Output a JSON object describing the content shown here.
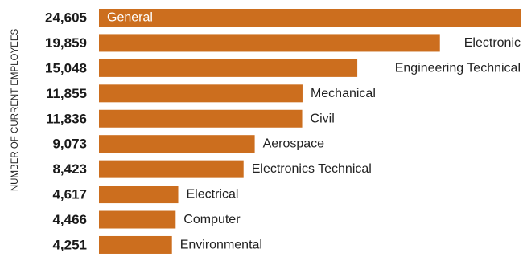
{
  "chart_data": {
    "type": "bar",
    "orientation": "horizontal",
    "title": "",
    "xlabel": "",
    "ylabel": "NUMBER OF CURRENT EMPLOYEES",
    "categories": [
      "General",
      "Electronic",
      "Engineering Technical",
      "Mechanical",
      "Civil",
      "Aerospace",
      "Electronics Technical",
      "Electrical",
      "Computer",
      "Environmental"
    ],
    "values": [
      24605,
      19859,
      15048,
      11855,
      11836,
      9073,
      8423,
      4617,
      4466,
      4251
    ],
    "value_labels": [
      "24,605",
      "19,859",
      "15,048",
      "11,855",
      "11,836",
      "9,073",
      "8,423",
      "4,617",
      "4,466",
      "4,251"
    ],
    "xlim": [
      0,
      24605
    ],
    "grid": false,
    "legend": "none",
    "colors": {
      "bar": "#CC6E1E",
      "text": "#1a1a1a",
      "label_inside": "#ffffff"
    }
  }
}
